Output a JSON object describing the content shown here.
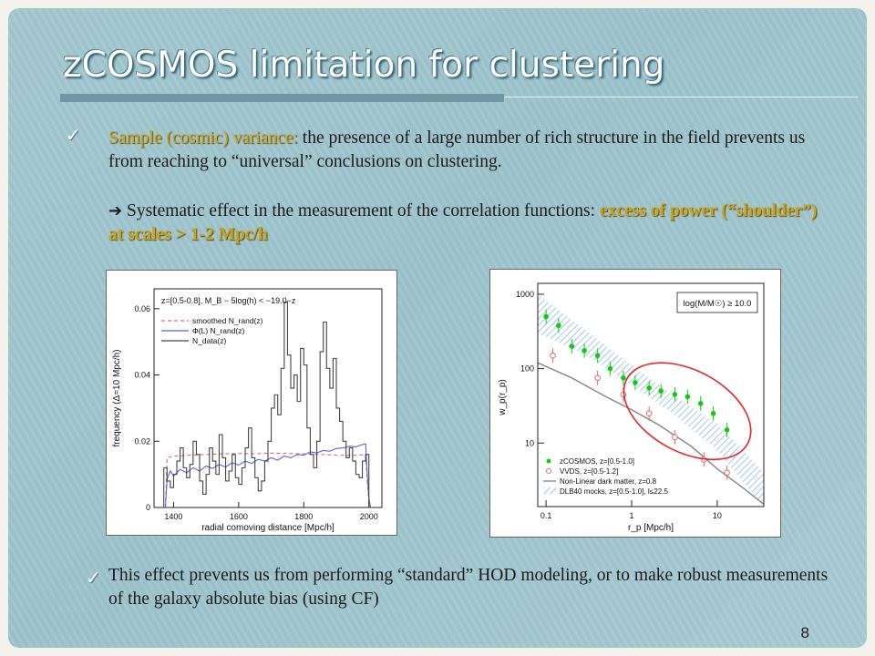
{
  "slide": {
    "title": "zCOSMOS limitation for clustering",
    "bullet1_lead": "Sample (cosmic) variance:",
    "bullet1_text": " the presence of a large number of rich structure in the field prevents us from reaching to “universal” conclusions on clustering.",
    "arrow_glyph": "➔",
    "sub_text": " Systematic effect in the measurement of the correlation  functions: ",
    "sub_highlight": "excess of power (“shoulder”) at scales > 1-2 Mpc/h",
    "bullet2_text": "This effect prevents us from performing “standard” HOD modeling, or to make robust measurements of the galaxy absolute bias (using CF)",
    "page_number": "8",
    "check_glyph": "✓"
  },
  "colors": {
    "highlight": "#c8a520",
    "background": "#a3c8d0",
    "title": "#ffffff",
    "zcosmos_points": "#14c814",
    "vvds_points": "#e06a6a",
    "ellipse": "#e0282d",
    "mock_band": "#7bb6e0"
  },
  "chart_data": [
    {
      "type": "line",
      "annotation": "z=[0.5-0.8], M_B − 5log(h) < −19.0−z",
      "xlabel": "radial comoving distance [Mpc/h]",
      "ylabel": "frequency (Δ=10 Mpc/h)",
      "xlim": [
        1340,
        2040
      ],
      "ylim": [
        0,
        0.066
      ],
      "x_ticks": [
        1400,
        1600,
        1800,
        2000
      ],
      "y_ticks": [
        0,
        0.02,
        0.04,
        0.06
      ],
      "y_tick_labels": [
        "0",
        "0.02",
        "0.04",
        "0.06"
      ],
      "legend": [
        "smoothed N_rand(z)",
        "Φ(L) N_rand(z)",
        "N_data(z)"
      ],
      "legend_position": "top-right",
      "series": [
        {
          "name": "smoothed N_rand(z)",
          "style": "dashed",
          "color": "#e06a6a",
          "x": [
            1375,
            1380,
            1400,
            1450,
            1500,
            1550,
            1600,
            1650,
            1700,
            1750,
            1800,
            1850,
            1900,
            1950,
            1990,
            1995,
            2000,
            2005
          ],
          "y": [
            0,
            0.015,
            0.0155,
            0.0158,
            0.016,
            0.0162,
            0.0163,
            0.0162,
            0.0164,
            0.0163,
            0.0162,
            0.016,
            0.0158,
            0.0157,
            0.016,
            0.008,
            0.002,
            0
          ]
        },
        {
          "name": "Φ(L) N_rand(z)",
          "style": "solid",
          "color": "#5a62e0",
          "x": [
            1375,
            1380,
            1390,
            1400,
            1420,
            1440,
            1460,
            1480,
            1500,
            1520,
            1540,
            1560,
            1580,
            1600,
            1620,
            1640,
            1660,
            1680,
            1700,
            1720,
            1740,
            1760,
            1780,
            1800,
            1820,
            1840,
            1860,
            1880,
            1900,
            1920,
            1940,
            1960,
            1980,
            1990,
            1995,
            2000,
            2005
          ],
          "y": [
            0,
            0.0085,
            0.011,
            0.0095,
            0.0115,
            0.0105,
            0.012,
            0.011,
            0.0125,
            0.0118,
            0.013,
            0.0122,
            0.0135,
            0.0128,
            0.014,
            0.0133,
            0.0145,
            0.014,
            0.015,
            0.0143,
            0.0155,
            0.015,
            0.016,
            0.0158,
            0.0168,
            0.0165,
            0.0172,
            0.017,
            0.0178,
            0.018,
            0.0185,
            0.0183,
            0.019,
            0.0192,
            0.01,
            0.003,
            0
          ]
        },
        {
          "name": "N_data(z)",
          "style": "step",
          "color": "#444444",
          "x": [
            1375,
            1385,
            1395,
            1405,
            1415,
            1425,
            1435,
            1445,
            1455,
            1465,
            1475,
            1485,
            1495,
            1505,
            1515,
            1525,
            1535,
            1545,
            1555,
            1565,
            1575,
            1585,
            1595,
            1605,
            1615,
            1625,
            1635,
            1645,
            1655,
            1665,
            1675,
            1685,
            1695,
            1705,
            1715,
            1725,
            1735,
            1745,
            1755,
            1765,
            1775,
            1785,
            1795,
            1805,
            1815,
            1825,
            1835,
            1845,
            1855,
            1865,
            1875,
            1885,
            1895,
            1905,
            1915,
            1925,
            1935,
            1945,
            1955,
            1965,
            1975,
            1985,
            1995,
            2005
          ],
          "y": [
            0.012,
            0.008,
            0.006,
            0.01,
            0.014,
            0.018,
            0.012,
            0.009,
            0.013,
            0.02,
            0.016,
            0.008,
            0.004,
            0.01,
            0.018,
            0.014,
            0.01,
            0.022,
            0.015,
            0.008,
            0.011,
            0.016,
            0.009,
            0.007,
            0.012,
            0.018,
            0.024,
            0.015,
            0.009,
            0.005,
            0.008,
            0.014,
            0.02,
            0.03,
            0.034,
            0.028,
            0.042,
            0.062,
            0.046,
            0.036,
            0.04,
            0.032,
            0.048,
            0.043,
            0.024,
            0.016,
            0.012,
            0.02,
            0.047,
            0.056,
            0.042,
            0.036,
            0.045,
            0.03,
            0.026,
            0.02,
            0.015,
            0.018,
            0.014,
            0.01,
            0.009,
            0.014,
            0.016,
            0
          ]
        }
      ]
    },
    {
      "type": "scatter",
      "scale": "log-log",
      "xlabel": "r_p [Mpc/h]",
      "ylabel": "w_p(r_p)",
      "xlim": [
        0.08,
        35
      ],
      "ylim": [
        1.4,
        1400
      ],
      "x_ticks": [
        0.1,
        1,
        10
      ],
      "x_tick_labels": [
        "0.1",
        "1",
        "10"
      ],
      "y_ticks": [
        10,
        100,
        1000
      ],
      "y_tick_labels": [
        "10",
        "100",
        "1000"
      ],
      "annotation": "log(M/M☉) ≥ 10.0",
      "legend": [
        "zCOSMOS, z=[0.5-1.0]",
        "VVDS, z=[0.5-1.2]",
        "Non-Linear dark matter, z=0.8",
        "DLB40 mocks, z=[0.5-1.0], I≤22.5"
      ],
      "legend_position": "bottom-left",
      "series": [
        {
          "name": "zCOSMOS, z=[0.5-1.0]",
          "marker": "filled-circle",
          "color": "#14c814",
          "x": [
            0.1,
            0.14,
            0.2,
            0.28,
            0.4,
            0.56,
            0.8,
            1.1,
            1.6,
            2.2,
            3.2,
            4.5,
            6.4,
            9,
            13
          ],
          "y": [
            500,
            380,
            200,
            175,
            150,
            100,
            75,
            65,
            55,
            50,
            45,
            42,
            34,
            25,
            15
          ]
        },
        {
          "name": "VVDS, z=[0.5-1.2]",
          "marker": "open-circle",
          "color": "#e06a6a",
          "x": [
            0.12,
            0.4,
            0.8,
            1.6,
            3.2,
            7,
            13
          ],
          "y": [
            150,
            75,
            45,
            25,
            12,
            6,
            4
          ]
        },
        {
          "name": "Non-Linear dark matter, z=0.8",
          "style": "solid",
          "color": "#8a8a8a",
          "x": [
            0.08,
            0.2,
            0.5,
            1,
            2,
            5,
            10,
            20,
            35
          ],
          "y": [
            120,
            75,
            42,
            28,
            18,
            9,
            4.5,
            2.5,
            1.5
          ]
        },
        {
          "name": "DLB40 mocks, z=[0.5-1.0], I≤22.5",
          "style": "hatched-band",
          "color": "#7bb6e0",
          "x": [
            0.08,
            0.3,
            1,
            3,
            10,
            20,
            35
          ],
          "y_low": [
            300,
            150,
            60,
            25,
            8,
            3,
            1.4
          ],
          "y_high": [
            1000,
            320,
            110,
            45,
            18,
            8,
            4
          ]
        }
      ]
    }
  ]
}
